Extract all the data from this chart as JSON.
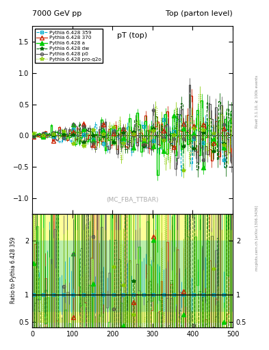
{
  "title_left": "7000 GeV pp",
  "title_right": "Top (parton level)",
  "plot_title": "pT (top)",
  "watermark": "(MC_FBA_TTBAR)",
  "right_label_top": "Rivet 3.1.10, ≥ 100k events",
  "right_label_bottom": "mcplots.cern.ch [arXiv:1306.3436]",
  "ylabel_ratio": "Ratio to Pythia 6.428 359",
  "xlim": [
    0,
    500
  ],
  "ylim_main": [
    -1.25,
    1.75
  ],
  "ylim_ratio": [
    0.4,
    2.5
  ],
  "series": [
    {
      "label": "Pythia 6.428 359",
      "color": "#00aacc",
      "linestyle": "--",
      "marker": "s",
      "markersize": 3,
      "linewidth": 0.8,
      "filled": false
    },
    {
      "label": "Pythia 6.428 370",
      "color": "#cc2200",
      "linestyle": "-",
      "marker": "^",
      "markersize": 4,
      "linewidth": 0.8,
      "filled": false
    },
    {
      "label": "Pythia 6.428 a",
      "color": "#00cc00",
      "linestyle": "-",
      "marker": "^",
      "markersize": 4,
      "linewidth": 1.0,
      "filled": true
    },
    {
      "label": "Pythia 6.428 dw",
      "color": "#006600",
      "linestyle": "--",
      "marker": "*",
      "markersize": 4,
      "linewidth": 0.8,
      "filled": true
    },
    {
      "label": "Pythia 6.428 p0",
      "color": "#555555",
      "linestyle": "-",
      "marker": "o",
      "markersize": 3,
      "linewidth": 0.8,
      "filled": false
    },
    {
      "label": "Pythia 6.428 pro-q2o",
      "color": "#88cc00",
      "linestyle": ":",
      "marker": "*",
      "markersize": 4,
      "linewidth": 0.8,
      "filled": false
    }
  ],
  "n_bins": 100,
  "xmax": 500,
  "bg_color": "#ffffff",
  "ratio_yticks": [
    0.5,
    1.0,
    2.0
  ],
  "ratio_ytick_labels": [
    "0.5",
    "1",
    "2"
  ]
}
